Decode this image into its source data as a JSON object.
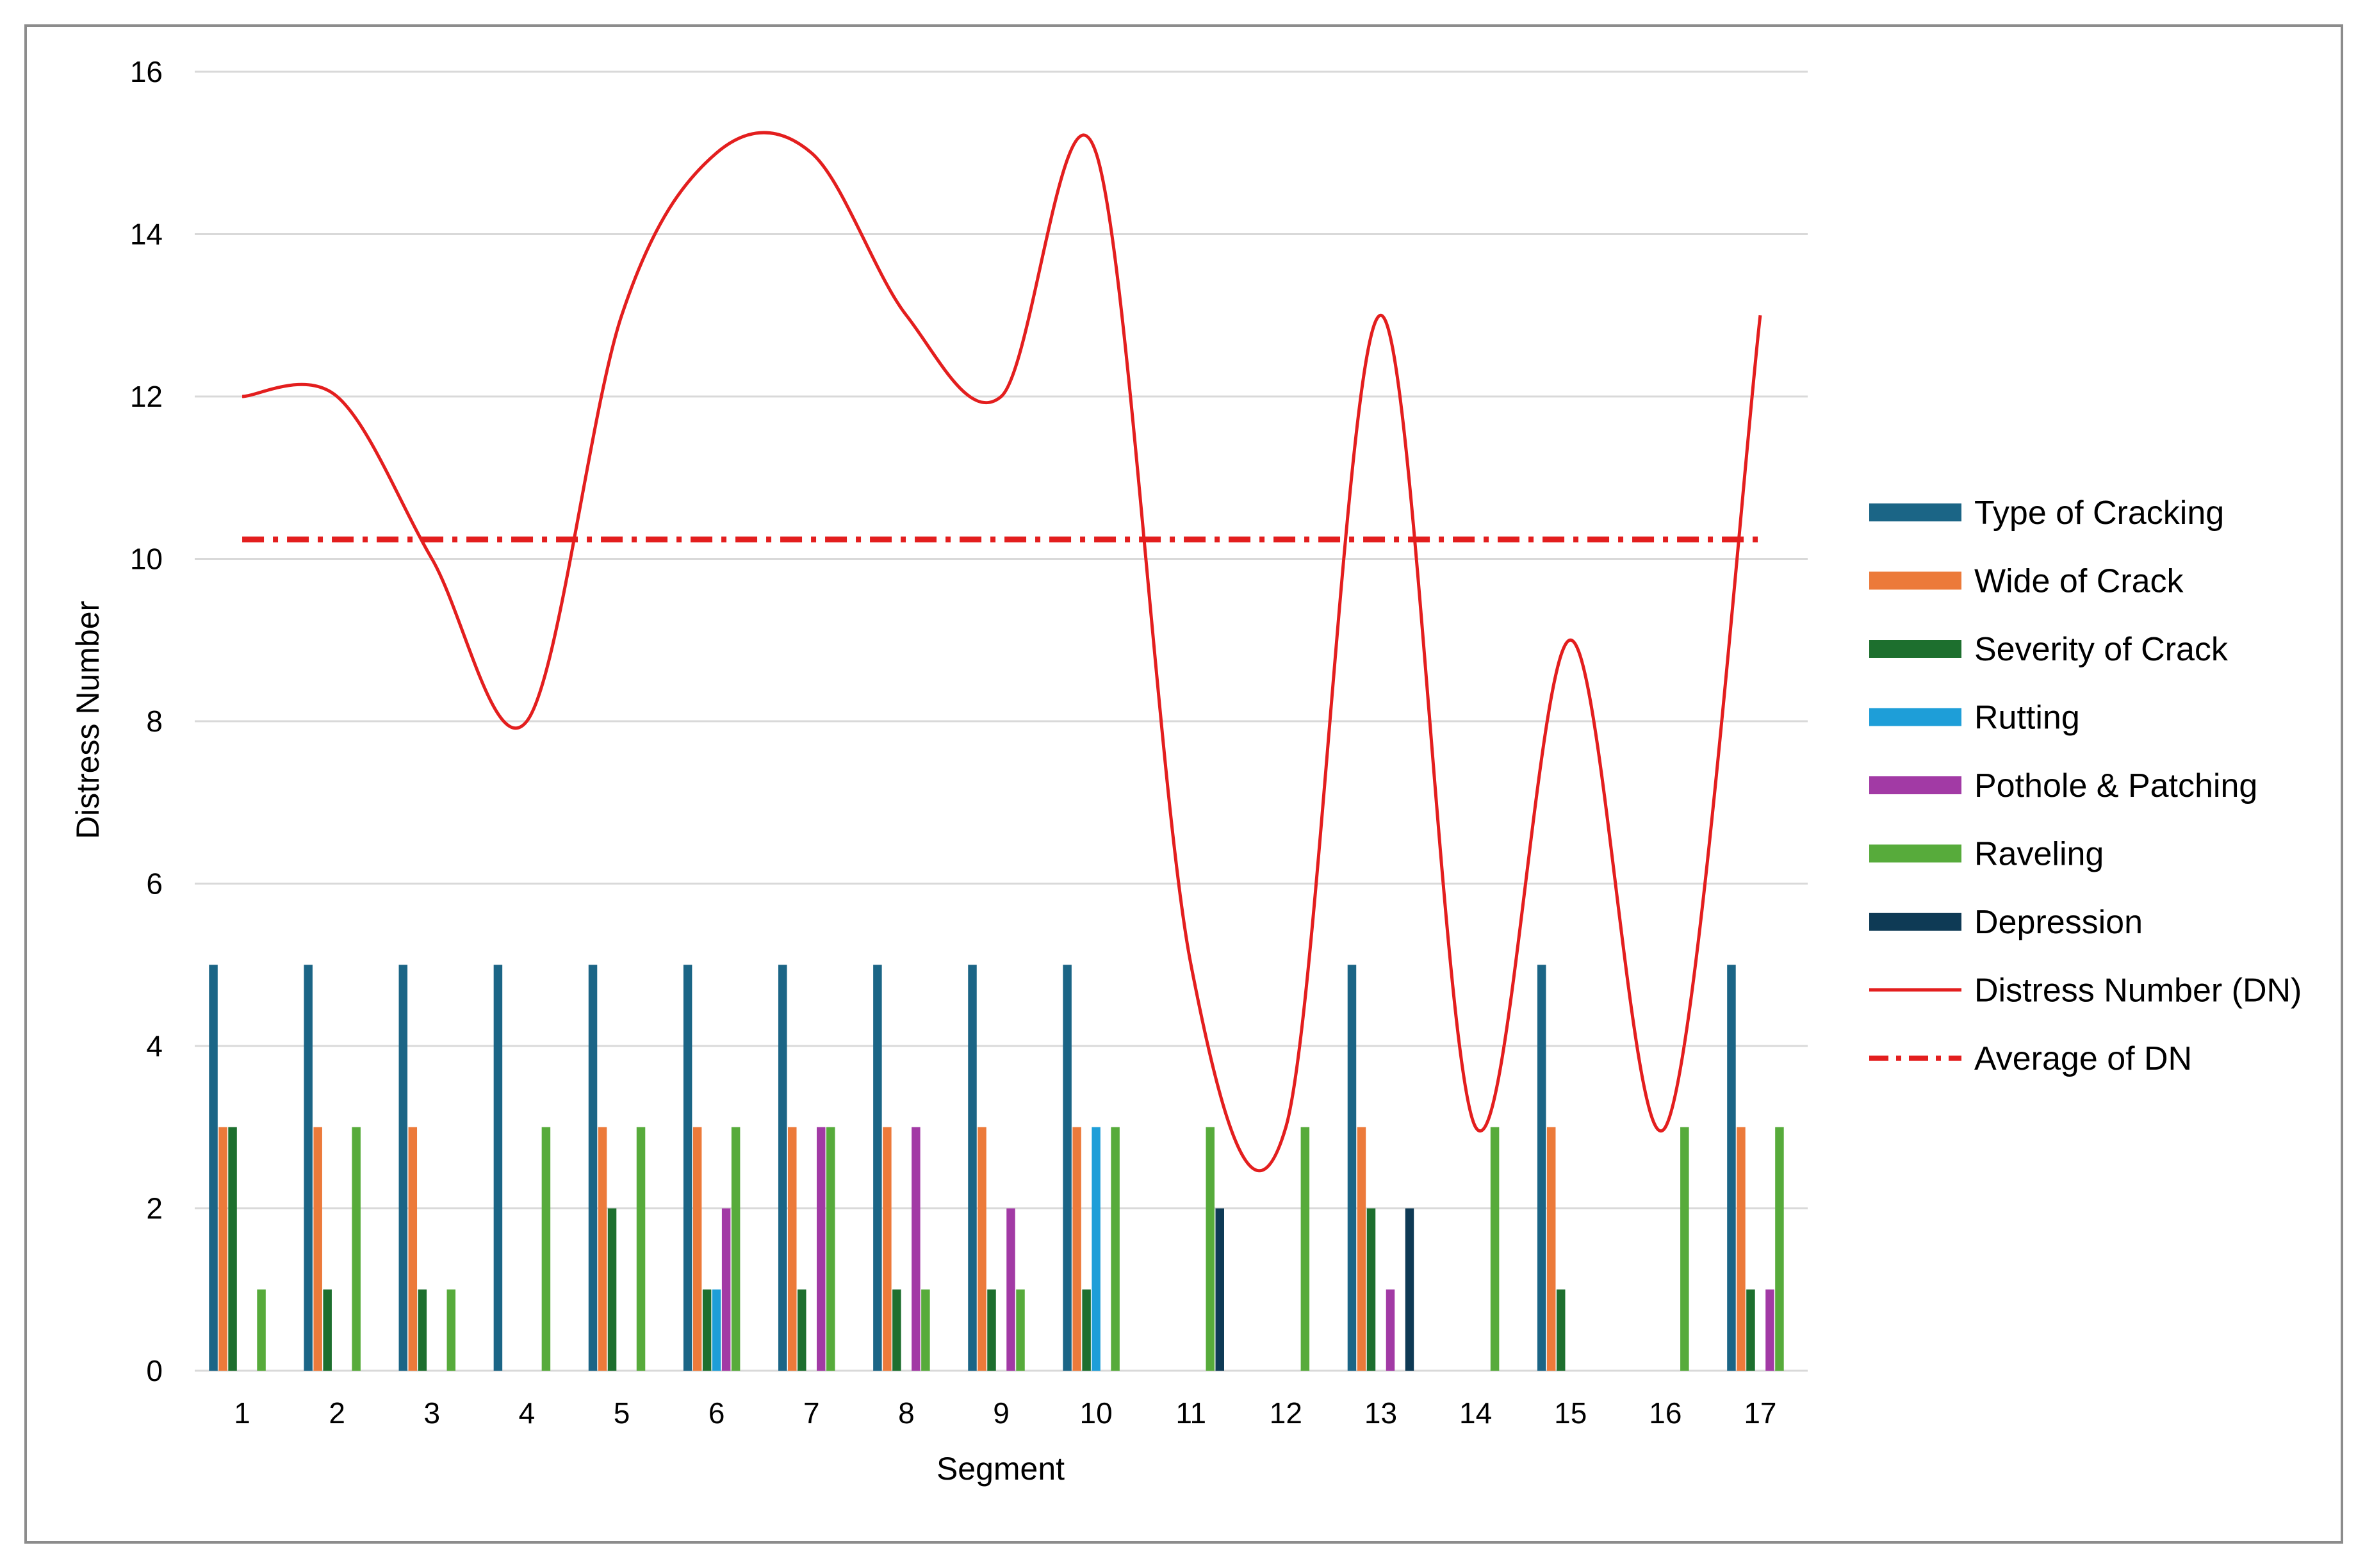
{
  "chart_data": {
    "type": "bar",
    "xlabel": "Segment",
    "ylabel": "Distress Number",
    "ylim": [
      0,
      16
    ],
    "yticks": [
      "0",
      "2",
      "4",
      "6",
      "8",
      "10",
      "12",
      "14",
      "16"
    ],
    "grid": true,
    "legend_placement": "right",
    "categories": [
      "1",
      "2",
      "3",
      "4",
      "5",
      "6",
      "7",
      "8",
      "9",
      "10",
      "11",
      "12",
      "13",
      "14",
      "15",
      "16",
      "17"
    ],
    "series": [
      {
        "name": "Type of Cracking",
        "kind": "bar",
        "color": "#1b6586",
        "values": [
          5,
          5,
          5,
          5,
          5,
          5,
          5,
          5,
          5,
          5,
          0,
          0,
          5,
          0,
          5,
          0,
          5
        ]
      },
      {
        "name": "Wide of Crack",
        "kind": "bar",
        "color": "#ec7a3a",
        "values": [
          3,
          3,
          3,
          0,
          3,
          3,
          3,
          3,
          3,
          3,
          0,
          0,
          3,
          0,
          3,
          0,
          3
        ]
      },
      {
        "name": "Severity of Crack",
        "kind": "bar",
        "color": "#1d6f2e",
        "values": [
          3,
          1,
          1,
          0,
          2,
          1,
          1,
          1,
          1,
          1,
          0,
          0,
          2,
          0,
          1,
          0,
          1
        ]
      },
      {
        "name": "Rutting",
        "kind": "bar",
        "color": "#1e9ed8",
        "values": [
          0,
          0,
          0,
          0,
          0,
          1,
          0,
          0,
          0,
          3,
          0,
          0,
          0,
          0,
          0,
          0,
          0
        ]
      },
      {
        "name": "Pothole & Patching",
        "kind": "bar",
        "color": "#a23aa5",
        "values": [
          0,
          0,
          0,
          0,
          0,
          2,
          3,
          3,
          2,
          0,
          0,
          0,
          1,
          0,
          0,
          0,
          1
        ]
      },
      {
        "name": "Raveling",
        "kind": "bar",
        "color": "#57ab3b",
        "values": [
          1,
          3,
          1,
          3,
          3,
          3,
          3,
          1,
          1,
          3,
          3,
          3,
          0,
          3,
          0,
          3,
          3
        ]
      },
      {
        "name": "Depression",
        "kind": "bar",
        "color": "#0e3a55",
        "values": [
          0,
          0,
          0,
          0,
          0,
          0,
          0,
          0,
          0,
          0,
          2,
          0,
          2,
          0,
          0,
          0,
          0
        ]
      },
      {
        "name": "Distress Number (DN)",
        "kind": "line",
        "color": "#e31e1e",
        "values": [
          12,
          12,
          10,
          8,
          13,
          15,
          15,
          13,
          12,
          15,
          5,
          3,
          13,
          3,
          9,
          3,
          13
        ]
      },
      {
        "name": "Average of DN",
        "kind": "dashdot",
        "color": "#e31e1e",
        "values": [
          10.24,
          10.24,
          10.24,
          10.24,
          10.24,
          10.24,
          10.24,
          10.24,
          10.24,
          10.24,
          10.24,
          10.24,
          10.24,
          10.24,
          10.24,
          10.24,
          10.24
        ]
      }
    ]
  }
}
